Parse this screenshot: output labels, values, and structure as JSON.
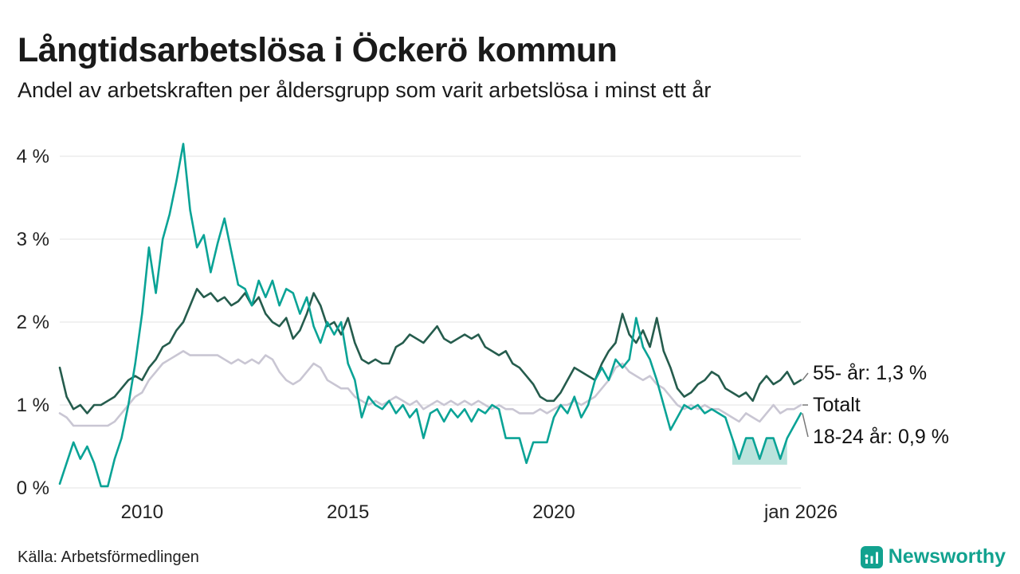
{
  "title": "Långtidsarbetslösa i Öckerö kommun",
  "subtitle": "Andel av arbetskraften per åldersgrupp som varit arbetslösa i minst ett år",
  "source": "Källa: Arbetsförmedlingen",
  "brand": {
    "name": "Newsworthy",
    "color": "#12a28f"
  },
  "end_labels": [
    "55- år: 1,3 %",
    "Totalt",
    "18-24 år: 0,9 %"
  ],
  "chart_data": {
    "type": "line",
    "title": "Långtidsarbetslösa i Öckerö kommun",
    "subtitle": "Andel av arbetskraften per åldersgrupp som varit arbetslösa i minst ett år",
    "unit": "%",
    "grid": "horizontal",
    "x_start": 2008,
    "x_end": 2026,
    "x_step_months": 2,
    "ylim": [
      0,
      4.3
    ],
    "y_ticks": [
      {
        "value": 0,
        "label": "0 %"
      },
      {
        "value": 1,
        "label": "1 %"
      },
      {
        "value": 2,
        "label": "2 %"
      },
      {
        "value": 3,
        "label": "3 %"
      },
      {
        "value": 4,
        "label": "4 %"
      }
    ],
    "x_ticks": [
      {
        "value": 2010,
        "label": "2010"
      },
      {
        "value": 2015,
        "label": "2015"
      },
      {
        "value": 2020,
        "label": "2020"
      },
      {
        "value": 2026,
        "label": "jan 2026"
      }
    ],
    "series": [
      {
        "name": "Totalt",
        "id": "totalt",
        "color": "#c9c6d3",
        "end_label": "Totalt",
        "end_value": 1.0,
        "values": [
          0.9,
          0.85,
          0.75,
          0.75,
          0.75,
          0.75,
          0.75,
          0.75,
          0.8,
          0.9,
          1.0,
          1.1,
          1.15,
          1.3,
          1.4,
          1.5,
          1.55,
          1.6,
          1.65,
          1.6,
          1.6,
          1.6,
          1.6,
          1.6,
          1.55,
          1.5,
          1.55,
          1.5,
          1.55,
          1.5,
          1.6,
          1.55,
          1.4,
          1.3,
          1.25,
          1.3,
          1.4,
          1.5,
          1.45,
          1.3,
          1.25,
          1.2,
          1.2,
          1.1,
          1.05,
          1.0,
          1.05,
          1.0,
          1.05,
          1.1,
          1.05,
          1.0,
          1.05,
          0.95,
          1.0,
          1.05,
          1.0,
          1.05,
          1.0,
          1.05,
          1.0,
          1.05,
          1.0,
          0.95,
          1.0,
          0.95,
          0.95,
          0.9,
          0.9,
          0.9,
          0.95,
          0.9,
          0.95,
          1.0,
          1.0,
          1.05,
          1.0,
          1.05,
          1.1,
          1.2,
          1.3,
          1.45,
          1.5,
          1.4,
          1.35,
          1.3,
          1.35,
          1.25,
          1.2,
          1.1,
          1.0,
          0.95,
          1.0,
          0.95,
          1.0,
          0.95,
          0.95,
          0.9,
          0.85,
          0.8,
          0.9,
          0.85,
          0.8,
          0.9,
          1.0,
          0.9,
          0.95,
          0.95,
          1.0
        ]
      },
      {
        "name": "55- år",
        "id": "55",
        "color": "#255c4d",
        "end_label": "55- år: 1,3 %",
        "end_value": 1.3,
        "values": [
          1.45,
          1.1,
          0.95,
          1.0,
          0.9,
          1.0,
          1.0,
          1.05,
          1.1,
          1.2,
          1.3,
          1.35,
          1.3,
          1.45,
          1.55,
          1.7,
          1.75,
          1.9,
          2.0,
          2.2,
          2.4,
          2.3,
          2.35,
          2.25,
          2.3,
          2.2,
          2.25,
          2.35,
          2.2,
          2.3,
          2.1,
          2.0,
          1.95,
          2.05,
          1.8,
          1.9,
          2.1,
          2.35,
          2.2,
          1.95,
          2.0,
          1.85,
          2.05,
          1.75,
          1.55,
          1.5,
          1.55,
          1.5,
          1.5,
          1.7,
          1.75,
          1.85,
          1.8,
          1.75,
          1.85,
          1.95,
          1.8,
          1.75,
          1.8,
          1.85,
          1.8,
          1.85,
          1.7,
          1.65,
          1.6,
          1.65,
          1.5,
          1.45,
          1.35,
          1.25,
          1.1,
          1.05,
          1.05,
          1.15,
          1.3,
          1.45,
          1.4,
          1.35,
          1.3,
          1.5,
          1.65,
          1.75,
          2.1,
          1.85,
          1.75,
          1.9,
          1.7,
          2.05,
          1.65,
          1.45,
          1.2,
          1.1,
          1.15,
          1.25,
          1.3,
          1.4,
          1.35,
          1.2,
          1.15,
          1.1,
          1.15,
          1.05,
          1.25,
          1.35,
          1.25,
          1.3,
          1.4,
          1.25,
          1.3
        ]
      },
      {
        "name": "18-24 år",
        "id": "18-24",
        "color": "#0aa396",
        "end_label": "18-24 år: 0,9 %",
        "end_value": 0.9,
        "values": [
          0.05,
          0.3,
          0.55,
          0.35,
          0.5,
          0.3,
          0.02,
          0.02,
          0.35,
          0.6,
          1.0,
          1.5,
          2.1,
          2.9,
          2.35,
          3.0,
          3.3,
          3.7,
          4.15,
          3.35,
          2.9,
          3.05,
          2.6,
          2.95,
          3.25,
          2.85,
          2.45,
          2.4,
          2.2,
          2.5,
          2.3,
          2.5,
          2.2,
          2.4,
          2.35,
          2.1,
          2.3,
          1.95,
          1.75,
          2.0,
          1.85,
          2.0,
          1.5,
          1.3,
          0.85,
          1.1,
          1.0,
          0.95,
          1.05,
          0.9,
          1.0,
          0.85,
          0.95,
          0.6,
          0.9,
          0.95,
          0.8,
          0.95,
          0.85,
          0.95,
          0.8,
          0.95,
          0.9,
          1.0,
          0.95,
          0.6,
          0.6,
          0.6,
          0.3,
          0.55,
          0.55,
          0.55,
          0.85,
          1.0,
          0.9,
          1.1,
          0.85,
          1.0,
          1.3,
          1.45,
          1.3,
          1.55,
          1.45,
          1.55,
          2.05,
          1.7,
          1.55,
          1.3,
          1.0,
          0.7,
          0.85,
          1.0,
          0.95,
          1.0,
          0.9,
          0.95,
          0.9,
          0.85,
          0.6,
          0.35,
          0.6,
          0.6,
          0.35,
          0.6,
          0.6,
          0.35,
          0.6,
          0.75,
          0.9
        ]
      }
    ],
    "band": {
      "series": "18-24 år",
      "x_start": 2024.33,
      "x_end": 2025.67,
      "lower": 0.28,
      "color": "#a9dcd3"
    },
    "legend_position": "right-end-labels"
  }
}
